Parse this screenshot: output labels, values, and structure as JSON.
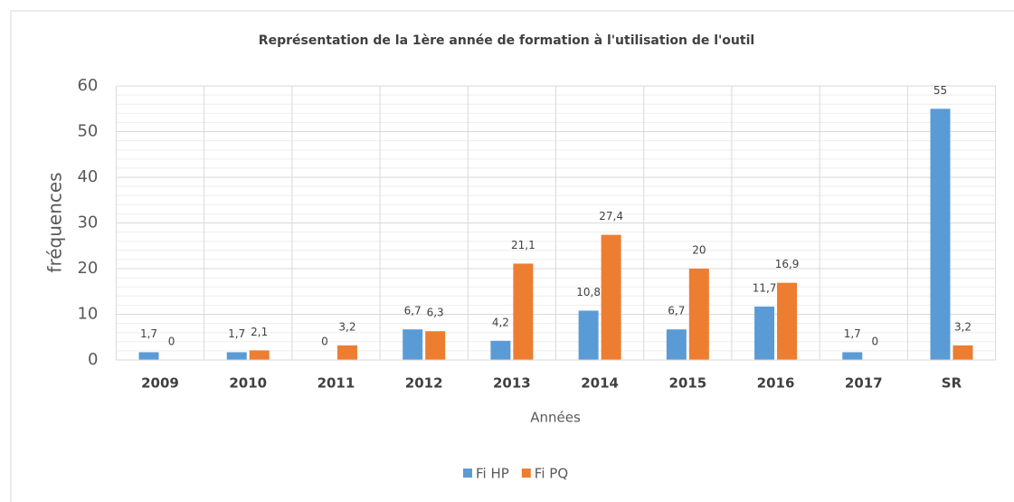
{
  "chart_data": {
    "type": "bar",
    "title": "Représentation de la 1ère année de formation à l'utilisation de l'outil",
    "x_label": "Années",
    "y_label": "fréquences",
    "categories": [
      "2009",
      "2010",
      "2011",
      "2012",
      "2013",
      "2014",
      "2015",
      "2016",
      "2017",
      "SR"
    ],
    "series": [
      {
        "name": "Fi HP",
        "color": "#5b9bd5",
        "values": [
          1.7,
          1.7,
          0,
          6.7,
          4.2,
          10.8,
          6.7,
          11.7,
          1.7,
          55
        ],
        "value_labels": [
          "1,7",
          "1,7",
          "0",
          "6,7",
          "4,2",
          "10,8",
          "6,7",
          "11,7",
          "1,7",
          "55"
        ]
      },
      {
        "name": "Fi PQ",
        "color": "#ed7d31",
        "values": [
          0,
          2.1,
          3.2,
          6.3,
          21.1,
          27.4,
          20,
          16.9,
          0,
          3.2
        ],
        "value_labels": [
          "0",
          "2,1",
          "3,2",
          "6,3",
          "21,1",
          "27,4",
          "20",
          "16,9",
          "0",
          "3,2"
        ]
      }
    ],
    "ylim": [
      0,
      60
    ],
    "yticks": [
      0,
      10,
      20,
      30,
      40,
      50,
      60
    ],
    "grid": true,
    "minor_grid": true,
    "legend": "bottom"
  }
}
